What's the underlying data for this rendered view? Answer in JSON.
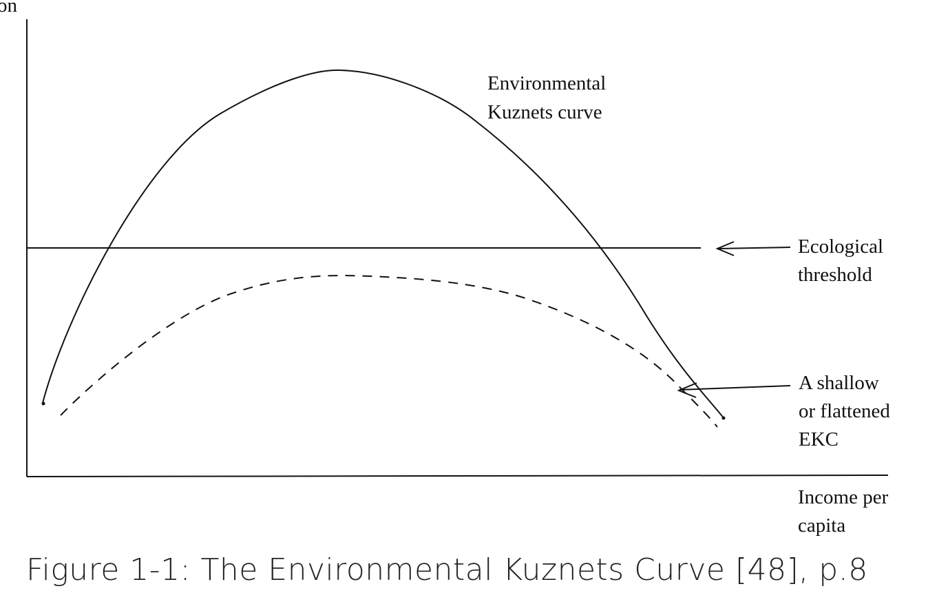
{
  "diagram": {
    "y_label_fragment": "on",
    "x_label": [
      "Income per",
      "capita"
    ],
    "curves": {
      "ekc": {
        "label": [
          "Environmental",
          "Kuznets curve"
        ]
      },
      "threshold": {
        "label": [
          "Ecological",
          "threshold"
        ]
      },
      "flattened": {
        "label": [
          "A shallow",
          "or flattened",
          "EKC"
        ]
      }
    },
    "colors": {
      "ink": "#111111",
      "background": "#ffffff"
    }
  },
  "caption": "Figure 1-1: The Environmental Kuznets Curve [48], p.8"
}
